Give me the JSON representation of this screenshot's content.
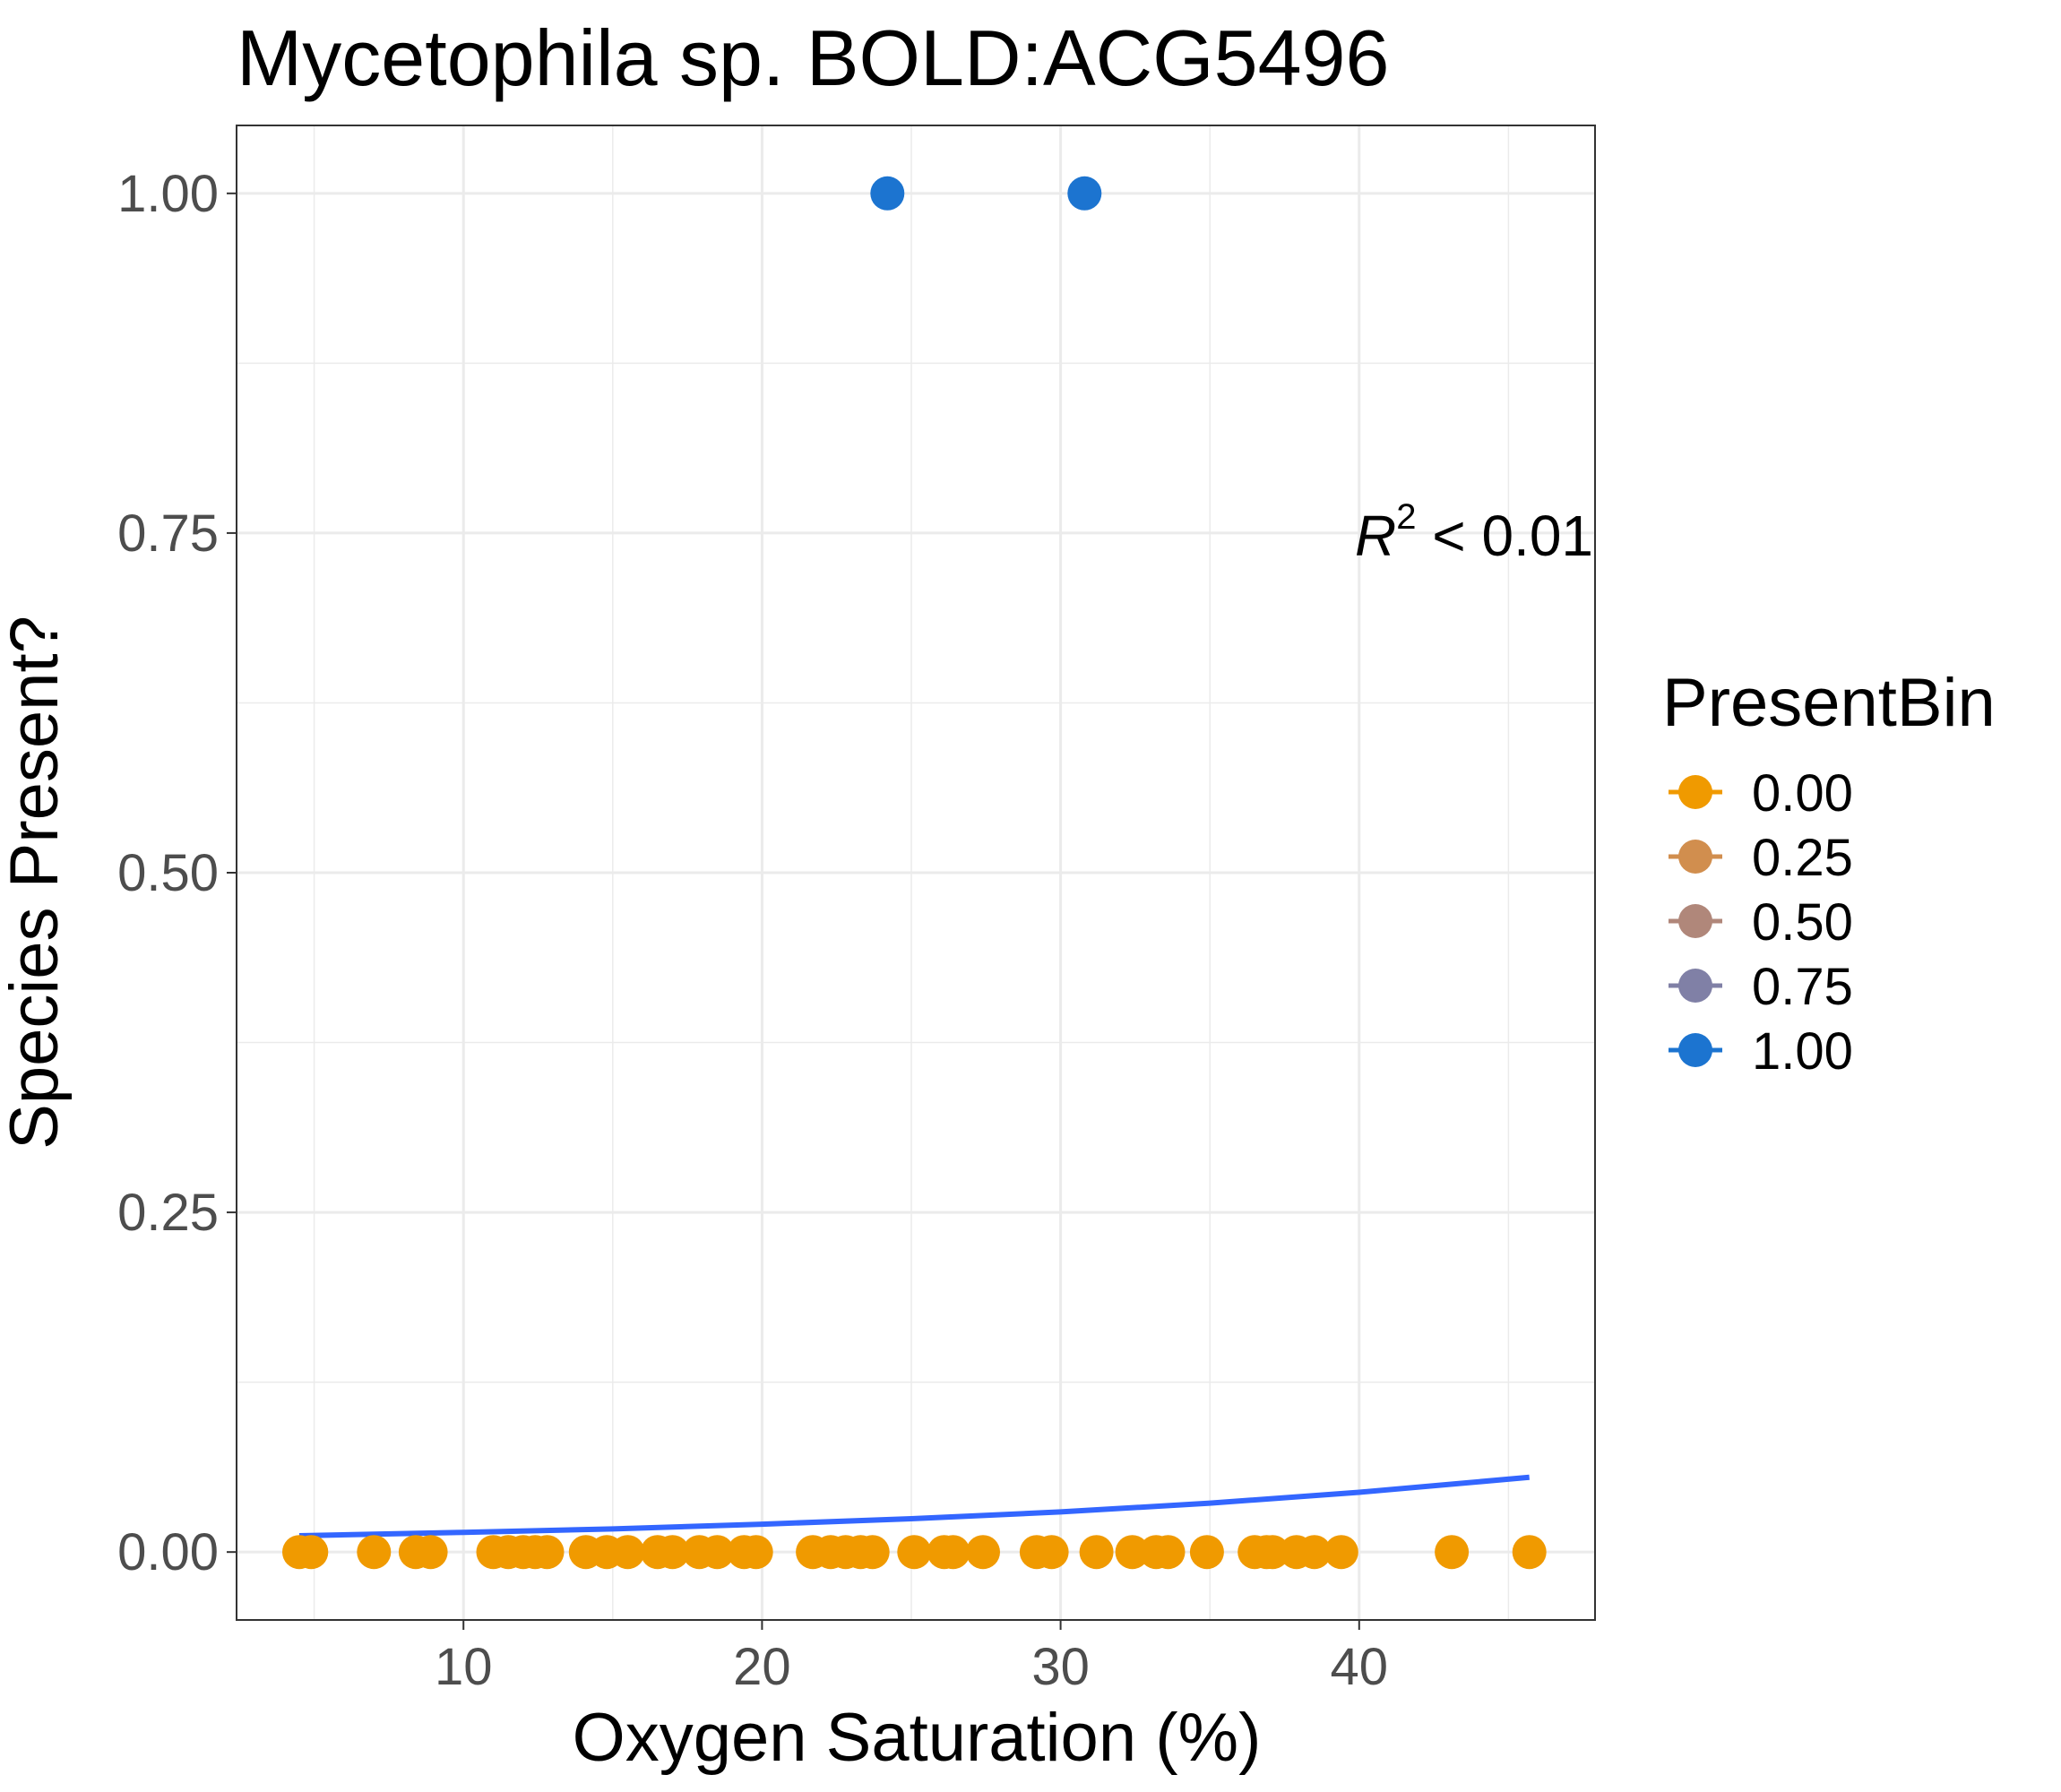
{
  "chart_data": {
    "type": "scatter",
    "title": "Mycetophila sp. BOLD:ACG5496",
    "xlabel": "Oxygen Saturation (%)",
    "ylabel": "Species Present?",
    "xlim": [
      2.4,
      47.9
    ],
    "ylim": [
      -0.05,
      1.05
    ],
    "x_ticks": [
      10,
      20,
      30,
      40
    ],
    "x_tick_labels": [
      "10",
      "20",
      "30",
      "40"
    ],
    "y_ticks": [
      0,
      0.25,
      0.5,
      0.75,
      1.0
    ],
    "y_tick_labels": [
      "0.00",
      "0.25",
      "0.50",
      "0.75",
      "1.00"
    ],
    "grid": true,
    "annotation": {
      "r_symbol": "R",
      "superscript": "2",
      "text": " < 0.01"
    },
    "legend": {
      "title": "PresentBin",
      "position": "right",
      "items": [
        {
          "label": "0.00",
          "color": "#f09a00"
        },
        {
          "label": "0.25",
          "color": "#d18e4e"
        },
        {
          "label": "0.50",
          "color": "#b0877a"
        },
        {
          "label": "0.75",
          "color": "#8080a6"
        },
        {
          "label": "1.00",
          "color": "#1c74d0"
        }
      ]
    },
    "series": [
      {
        "color": "#f09a00",
        "x": [
          4.5,
          4.9,
          7.0,
          8.4,
          8.9,
          11.0,
          11.5,
          12.0,
          12.4,
          12.8,
          14.1,
          14.8,
          15.5,
          16.5,
          17.0,
          17.9,
          18.5,
          19.4,
          19.8,
          21.7,
          22.3,
          22.8,
          23.3,
          23.7,
          25.1,
          26.1,
          26.4,
          27.4,
          29.2,
          29.7,
          31.2,
          32.4,
          33.2,
          33.6,
          34.9,
          36.5,
          36.9,
          37.1,
          37.9,
          38.5,
          39.4,
          43.1,
          45.7
        ],
        "y": [
          0,
          0,
          0,
          0,
          0,
          0,
          0,
          0,
          0,
          0,
          0,
          0,
          0,
          0,
          0,
          0,
          0,
          0,
          0,
          0,
          0,
          0,
          0,
          0,
          0,
          0,
          0,
          0,
          0,
          0,
          0,
          0,
          0,
          0,
          0,
          0,
          0,
          0,
          0,
          0,
          0,
          0,
          0
        ]
      },
      {
        "color": "#1c74d0",
        "x": [
          24.2,
          30.8
        ],
        "y": [
          1,
          1
        ]
      }
    ],
    "fit_line": {
      "color": "#3366ff",
      "x": [
        4.5,
        10,
        15,
        20,
        25,
        30,
        35,
        40,
        45.7
      ],
      "y": [
        0.012,
        0.0145,
        0.017,
        0.0205,
        0.0245,
        0.0295,
        0.036,
        0.044,
        0.055
      ]
    }
  }
}
